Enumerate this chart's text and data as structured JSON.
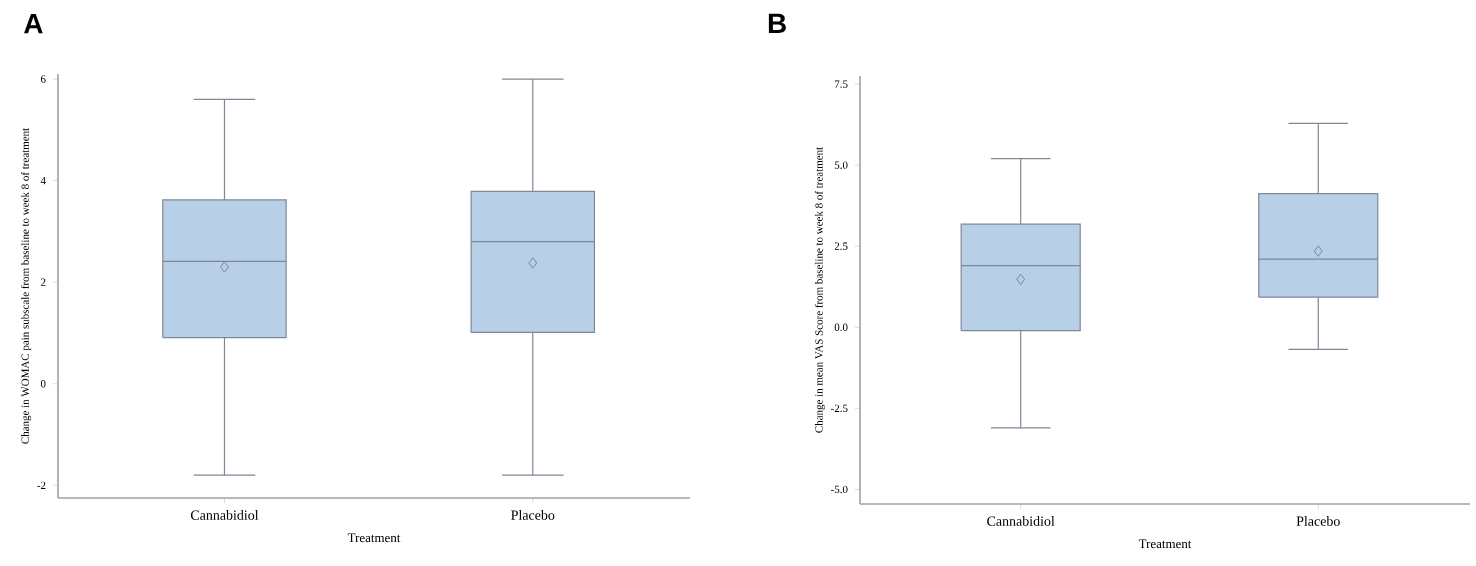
{
  "chart_data": [
    {
      "type": "box",
      "title": "A",
      "xlabel": "Treatment",
      "ylabel": "Change in WOMAC pain subscale from baseline to week 8 of treatment",
      "categories": [
        "Cannabidiol",
        "Placebo"
      ],
      "color": "#b8cfe8",
      "marker": "diamond",
      "ylim": [
        -2.25,
        6.1
      ],
      "yticks": [
        6,
        4,
        2,
        0,
        -2
      ],
      "boxes": [
        {
          "low": -1.8,
          "q1": 0.91,
          "median": 2.41,
          "q3": 3.62,
          "high": 5.6,
          "mean": 2.3
        },
        {
          "low": -1.8,
          "q1": 1.01,
          "median": 2.8,
          "q3": 3.79,
          "high": 6.0,
          "mean": 2.38
        }
      ]
    },
    {
      "type": "box",
      "title": "B",
      "xlabel": "Treatment",
      "ylabel": "Change in mean VAS Score from baseline to week 8 of treatment",
      "categories": [
        "Cannabidiol",
        "Placebo"
      ],
      "color": "#b8cfe8",
      "marker": "diamond",
      "ylim": [
        -5.45,
        7.75
      ],
      "yticks": [
        {
          "value": 7.5,
          "label": "7.5"
        },
        {
          "value": 5,
          "label": "5.0"
        },
        {
          "value": 2.5,
          "label": "2.5"
        },
        {
          "value": 0,
          "label": "0.0"
        },
        {
          "value": -2.5,
          "label": "-2.5"
        },
        {
          "value": -5,
          "label": "-5.0"
        }
      ],
      "boxes": [
        {
          "low": -3.1,
          "q1": -0.1,
          "median": 1.9,
          "q3": 3.18,
          "high": 5.2,
          "mean": 1.48
        },
        {
          "low": -0.68,
          "q1": 0.93,
          "median": 2.1,
          "q3": 4.12,
          "high": 6.29,
          "mean": 2.35
        }
      ]
    }
  ]
}
